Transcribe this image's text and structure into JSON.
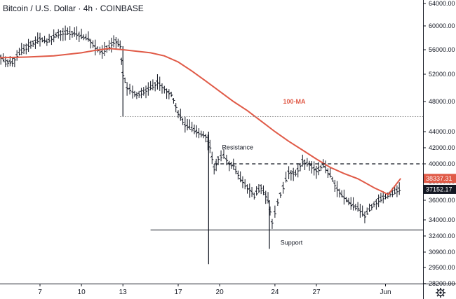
{
  "chart_data": {
    "type": "line",
    "title": "Bitcoin / U.S. Dollar · 4h · COINBASE",
    "ylim": [
      28000,
      65000
    ],
    "xlim": [
      4,
      33.6
    ],
    "y_ticks": [
      64000,
      60000,
      56000,
      52000,
      48000,
      44000,
      42000,
      40000,
      38000,
      36000,
      34000,
      32400,
      30900,
      29500,
      28200
    ],
    "y_tick_labels": [
      "64000.00",
      "60000.00",
      "56000.00",
      "52000.00",
      "48000.00",
      "44000.00",
      "42000.00",
      "40000.00",
      "38000.00",
      "36000.00",
      "34000.00",
      "32400.00",
      "30900.00",
      "29500.00",
      "28200.00"
    ],
    "x_ticks": [
      7,
      10,
      13,
      17,
      20,
      24,
      27,
      32
    ],
    "x_tick_labels": [
      "7",
      "10",
      "13",
      "17",
      "20",
      "24",
      "27",
      "Jun"
    ],
    "series": [
      {
        "name": "100-MA",
        "color": "#e05a47",
        "points": [
          [
            4,
            54700
          ],
          [
            6,
            54800
          ],
          [
            8,
            55000
          ],
          [
            10,
            55500
          ],
          [
            11,
            55900
          ],
          [
            12,
            56200
          ],
          [
            13,
            56000
          ],
          [
            15,
            55500
          ],
          [
            16,
            55000
          ],
          [
            17,
            54000
          ],
          [
            18,
            52500
          ],
          [
            19,
            51000
          ],
          [
            20,
            49500
          ],
          [
            21,
            48000
          ],
          [
            22,
            46800
          ],
          [
            23,
            45400
          ],
          [
            24,
            44000
          ],
          [
            25,
            42800
          ],
          [
            26,
            41700
          ],
          [
            27,
            40600
          ],
          [
            28,
            39600
          ],
          [
            29,
            38900
          ],
          [
            30,
            38300
          ],
          [
            30.6,
            37800
          ],
          [
            31.2,
            37300
          ],
          [
            31.8,
            36900
          ],
          [
            32.2,
            36600
          ],
          [
            33.1,
            38340
          ]
        ]
      },
      {
        "name": "BTCUSD",
        "color": "#131722",
        "points": [
          [
            4,
            55200
          ],
          [
            4.5,
            54000
          ],
          [
            5,
            53900
          ],
          [
            5.5,
            55500
          ],
          [
            6,
            56400
          ],
          [
            6.5,
            57200
          ],
          [
            7,
            57800
          ],
          [
            7.5,
            57300
          ],
          [
            8,
            58300
          ],
          [
            8.5,
            58800
          ],
          [
            9,
            58900
          ],
          [
            9.5,
            58700
          ],
          [
            10,
            58300
          ],
          [
            10.5,
            57800
          ],
          [
            11,
            56400
          ],
          [
            11.5,
            55600
          ],
          [
            12,
            56600
          ],
          [
            12.5,
            57400
          ],
          [
            12.8,
            56600
          ],
          [
            13,
            52100
          ],
          [
            13.3,
            50000
          ],
          [
            13.7,
            49400
          ],
          [
            14,
            49000
          ],
          [
            14.5,
            49400
          ],
          [
            15,
            50000
          ],
          [
            15.5,
            50800
          ],
          [
            16,
            49900
          ],
          [
            16.5,
            49000
          ],
          [
            17,
            46500
          ],
          [
            17.5,
            44900
          ],
          [
            18,
            44400
          ],
          [
            18.5,
            43800
          ],
          [
            19,
            43400
          ],
          [
            19.3,
            42000
          ],
          [
            19.6,
            39500
          ],
          [
            19.9,
            40600
          ],
          [
            20.3,
            41000
          ],
          [
            20.7,
            40000
          ],
          [
            21,
            39800
          ],
          [
            21.5,
            38200
          ],
          [
            22,
            37400
          ],
          [
            22.5,
            36500
          ],
          [
            23,
            37400
          ],
          [
            23.5,
            36000
          ],
          [
            23.8,
            33700
          ],
          [
            24.2,
            35800
          ],
          [
            24.6,
            37400
          ],
          [
            25,
            39000
          ],
          [
            25.5,
            38900
          ],
          [
            26,
            40300
          ],
          [
            26.5,
            40000
          ],
          [
            27,
            39200
          ],
          [
            27.5,
            39800
          ],
          [
            28,
            38700
          ],
          [
            28.5,
            37200
          ],
          [
            29,
            36300
          ],
          [
            29.5,
            35600
          ],
          [
            30,
            35200
          ],
          [
            30.5,
            34400
          ],
          [
            31,
            35400
          ],
          [
            31.5,
            36000
          ],
          [
            32,
            36400
          ],
          [
            32.5,
            36800
          ],
          [
            33,
            37152
          ]
        ]
      }
    ],
    "last_price": {
      "label": "37152.17",
      "color": "#131722"
    },
    "ma_value": {
      "label": "38337.31",
      "color": "#e05a47"
    },
    "levels": [
      {
        "label": "Resistance",
        "y": 40000,
        "style": "dashed",
        "x_from": 19.6
      },
      {
        "label": "Support",
        "y": 33000,
        "style": "solid",
        "x_from": 15
      },
      {
        "label": "",
        "y": 46000,
        "style": "dotted",
        "x_from": 12.8
      }
    ],
    "annotations": [
      {
        "label": "100-MA",
        "x": 25.4,
        "y": 47700,
        "color": "#e05a47"
      },
      {
        "label": "Resistance",
        "x": 21.3,
        "y": 41800
      },
      {
        "label": "Support",
        "x": 25.2,
        "y": 31600
      }
    ],
    "grid": false,
    "legend": "none"
  }
}
